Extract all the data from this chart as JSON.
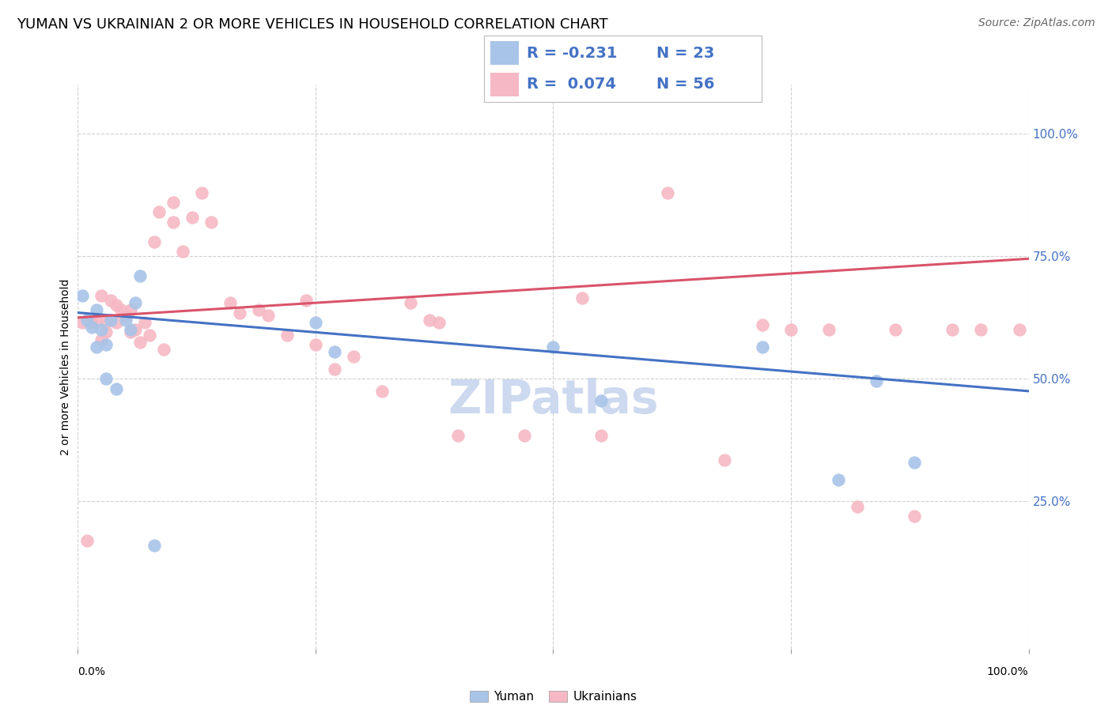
{
  "title": "YUMAN VS UKRAINIAN 2 OR MORE VEHICLES IN HOUSEHOLD CORRELATION CHART",
  "source": "Source: ZipAtlas.com",
  "ylabel": "2 or more Vehicles in Household",
  "blue_color": "#a8c4e8",
  "pink_color": "#f5b8c4",
  "blue_line_color": "#4472c4",
  "pink_line_color": "#d9546a",
  "watermark": "ZIPatlas",
  "yaxis_labels": [
    "25.0%",
    "50.0%",
    "75.0%",
    "100.0%"
  ],
  "yaxis_values": [
    0.25,
    0.5,
    0.75,
    1.0
  ],
  "blue_scatter_x": [
    0.005,
    0.01,
    0.015,
    0.02,
    0.02,
    0.025,
    0.03,
    0.03,
    0.035,
    0.04,
    0.05,
    0.055,
    0.06,
    0.065,
    0.08,
    0.25,
    0.27,
    0.5,
    0.55,
    0.72,
    0.8,
    0.84,
    0.88
  ],
  "blue_scatter_y": [
    0.67,
    0.62,
    0.605,
    0.64,
    0.565,
    0.6,
    0.57,
    0.5,
    0.62,
    0.48,
    0.62,
    0.6,
    0.655,
    0.71,
    0.16,
    0.615,
    0.555,
    0.565,
    0.455,
    0.565,
    0.295,
    0.495,
    0.33
  ],
  "pink_scatter_x": [
    0.005,
    0.01,
    0.015,
    0.02,
    0.025,
    0.025,
    0.03,
    0.03,
    0.035,
    0.04,
    0.04,
    0.045,
    0.05,
    0.055,
    0.055,
    0.06,
    0.065,
    0.07,
    0.075,
    0.08,
    0.085,
    0.09,
    0.1,
    0.1,
    0.11,
    0.12,
    0.13,
    0.14,
    0.16,
    0.17,
    0.19,
    0.2,
    0.22,
    0.24,
    0.25,
    0.27,
    0.29,
    0.32,
    0.35,
    0.37,
    0.38,
    0.4,
    0.47,
    0.53,
    0.55,
    0.62,
    0.68,
    0.72,
    0.75,
    0.79,
    0.82,
    0.86,
    0.88,
    0.92,
    0.95,
    0.99
  ],
  "pink_scatter_y": [
    0.615,
    0.17,
    0.615,
    0.62,
    0.67,
    0.58,
    0.615,
    0.595,
    0.66,
    0.65,
    0.615,
    0.64,
    0.63,
    0.64,
    0.595,
    0.6,
    0.575,
    0.615,
    0.59,
    0.78,
    0.84,
    0.56,
    0.86,
    0.82,
    0.76,
    0.83,
    0.88,
    0.82,
    0.655,
    0.635,
    0.64,
    0.63,
    0.59,
    0.66,
    0.57,
    0.52,
    0.545,
    0.475,
    0.655,
    0.62,
    0.615,
    0.385,
    0.385,
    0.665,
    0.385,
    0.88,
    0.335,
    0.61,
    0.6,
    0.6,
    0.24,
    0.6,
    0.22,
    0.6,
    0.6,
    0.6
  ],
  "blue_trend_x": [
    0.0,
    1.0
  ],
  "blue_trend_y": [
    0.635,
    0.475
  ],
  "pink_trend_x": [
    0.0,
    1.0
  ],
  "pink_trend_y": [
    0.625,
    0.745
  ],
  "xlim": [
    0.0,
    1.0
  ],
  "ylim": [
    -0.05,
    1.1
  ],
  "title_fontsize": 13,
  "source_fontsize": 10,
  "legend_fontsize": 14,
  "watermark_fontsize": 42,
  "watermark_color": "#ccd9ef",
  "background_color": "#ffffff",
  "grid_color": "#d0d0d0"
}
